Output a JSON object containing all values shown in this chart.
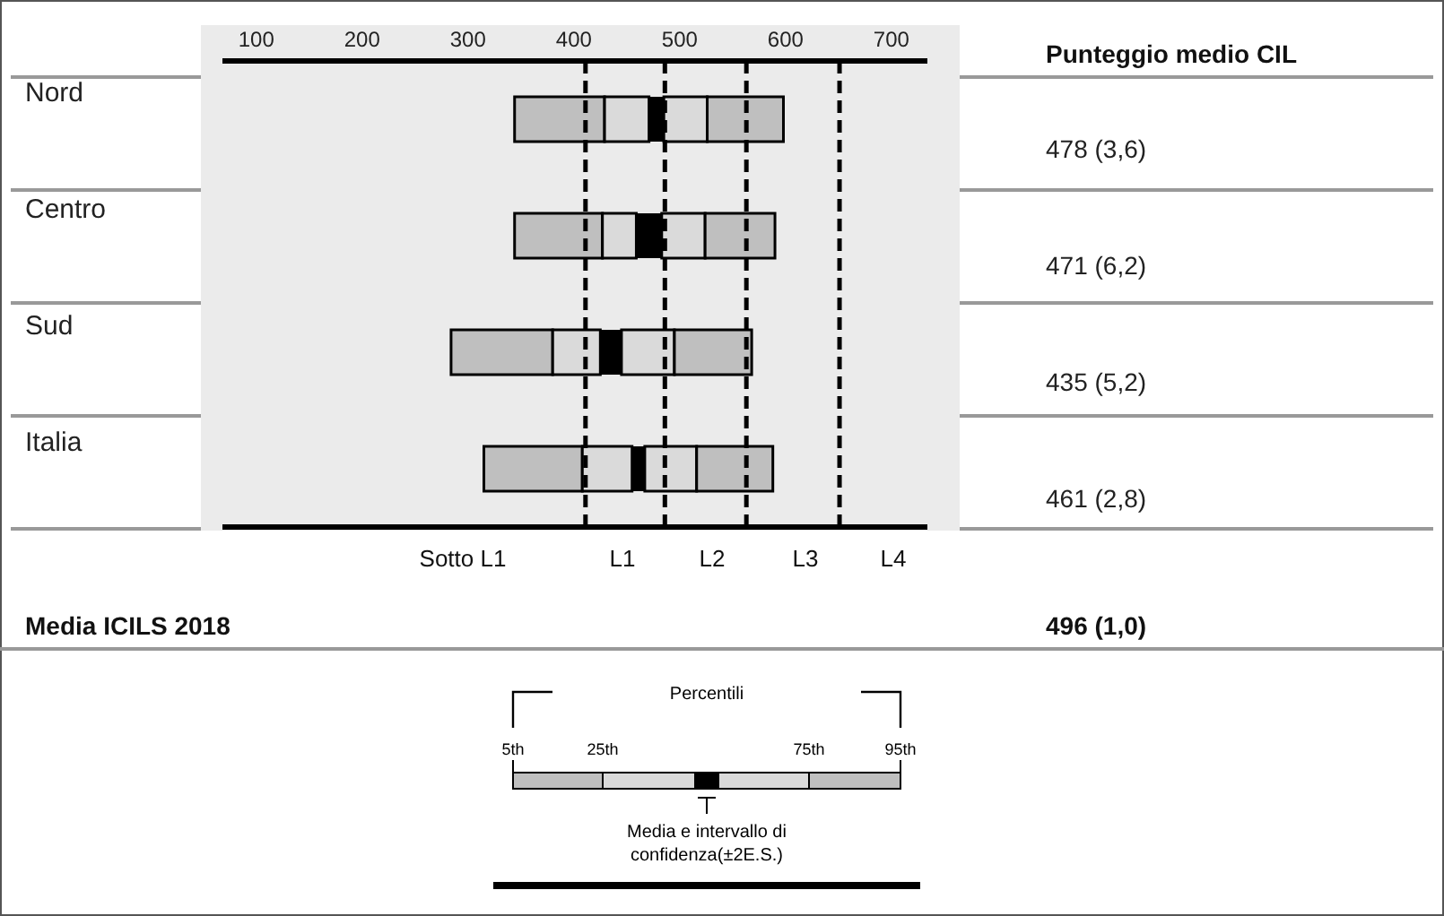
{
  "chart_data": {
    "type": "bar",
    "orientation": "horizontal",
    "categories": [
      "Nord",
      "Centro",
      "Sud",
      "Italia"
    ],
    "series": [
      {
        "color": "#bfbfbf",
        "base": [
          344,
          344,
          284,
          315
        ],
        "values": [
          85,
          83,
          96,
          93
        ]
      },
      {
        "color": "#dadada",
        "base": [
          429,
          427,
          380,
          408
        ],
        "values": [
          42,
          32,
          45,
          47
        ]
      },
      {
        "color": "#000000",
        "base": [
          471,
          459,
          425,
          455
        ],
        "values": [
          14,
          24,
          20,
          12
        ]
      },
      {
        "color": "#dadada",
        "base": [
          485,
          483,
          445,
          467
        ],
        "values": [
          41,
          41,
          50,
          49
        ]
      },
      {
        "color": "#bfbfbf",
        "base": [
          526,
          524,
          495,
          516
        ],
        "values": [
          72,
          66,
          73,
          72
        ]
      }
    ],
    "xlim": [
      68,
      734
    ],
    "xticks": [
      100,
      200,
      300,
      400,
      500,
      600,
      700
    ],
    "ref_lines": [
      {
        "axis": "x",
        "value": 411,
        "line_style": "dashed"
      },
      {
        "axis": "x",
        "value": 486,
        "line_style": "dashed"
      },
      {
        "axis": "x",
        "value": 563,
        "line_style": "dashed"
      },
      {
        "axis": "x",
        "value": 651,
        "line_style": "dashed"
      }
    ],
    "y2label": "Punteggio medio CIL",
    "annotations": [
      "478  (3,6)",
      "471  (6,2)",
      "435  (5,2)",
      "461  (2,8)",
      "Sotto L1",
      "L1",
      "L2",
      "L3",
      "L4",
      "Media ICILS 2018",
      "496  (1,0)",
      "Percentili",
      "5th",
      "25th",
      "75th",
      "95th",
      "Media e intervallo di confidenza(±2E.S.)"
    ]
  }
}
